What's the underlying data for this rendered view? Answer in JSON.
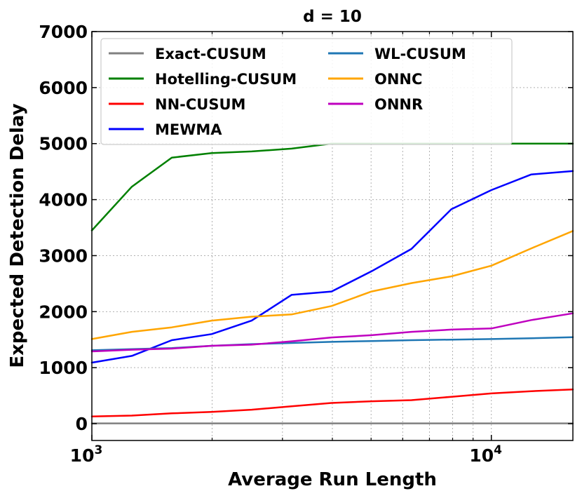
{
  "chart_data": {
    "type": "line",
    "title": "d = 10",
    "xlabel": "Average Run Length",
    "ylabel": "Expected Detection Delay",
    "xscale": "log",
    "xlim": [
      1000,
      16000
    ],
    "ylim": [
      -300,
      7000
    ],
    "x_ticks": [
      1000,
      10000
    ],
    "x_tick_labels": [
      {
        "base": "10",
        "exp": "3"
      },
      {
        "base": "10",
        "exp": "4"
      }
    ],
    "y_ticks": [
      0,
      1000,
      2000,
      3000,
      4000,
      5000,
      6000,
      7000
    ],
    "y_tick_labels": [
      "0",
      "1000",
      "2000",
      "3000",
      "4000",
      "5000",
      "6000",
      "7000"
    ],
    "grid": true,
    "legend_position": "top-left",
    "legend_columns": 2,
    "x": [
      1000,
      1259,
      1585,
      1995,
      2512,
      3162,
      3981,
      5012,
      6310,
      7943,
      10000,
      12589,
      16000
    ],
    "series": [
      {
        "name": "Exact-CUSUM",
        "color": "#808080",
        "values": [
          5,
          5,
          5,
          5,
          5,
          5,
          5,
          5,
          5,
          5,
          5,
          5,
          5
        ]
      },
      {
        "name": "Hotelling-CUSUM",
        "color": "#008000",
        "values": [
          3450,
          4230,
          4750,
          4830,
          4860,
          4910,
          5000,
          5000,
          5000,
          5000,
          5000,
          5000,
          5000
        ]
      },
      {
        "name": "NN-CUSUM",
        "color": "#ff0000",
        "values": [
          130,
          145,
          185,
          210,
          250,
          310,
          370,
          400,
          420,
          480,
          540,
          580,
          610
        ]
      },
      {
        "name": "MEWMA",
        "color": "#0000ff",
        "values": [
          1090,
          1210,
          1490,
          1600,
          1840,
          2300,
          2360,
          2720,
          3120,
          3830,
          4170,
          4450,
          4510
        ]
      },
      {
        "name": "WL-CUSUM",
        "color": "#1f77b4",
        "values": [
          1310,
          1330,
          1350,
          1390,
          1420,
          1440,
          1460,
          1475,
          1490,
          1500,
          1510,
          1525,
          1545
        ]
      },
      {
        "name": "ONNC",
        "color": "#ffa500",
        "values": [
          1510,
          1640,
          1720,
          1840,
          1910,
          1950,
          2100,
          2360,
          2510,
          2630,
          2820,
          3130,
          3440
        ]
      },
      {
        "name": "ONNR",
        "color": "#bf00bf",
        "values": [
          1290,
          1320,
          1340,
          1390,
          1410,
          1470,
          1540,
          1580,
          1640,
          1680,
          1700,
          1850,
          1970
        ]
      }
    ]
  }
}
